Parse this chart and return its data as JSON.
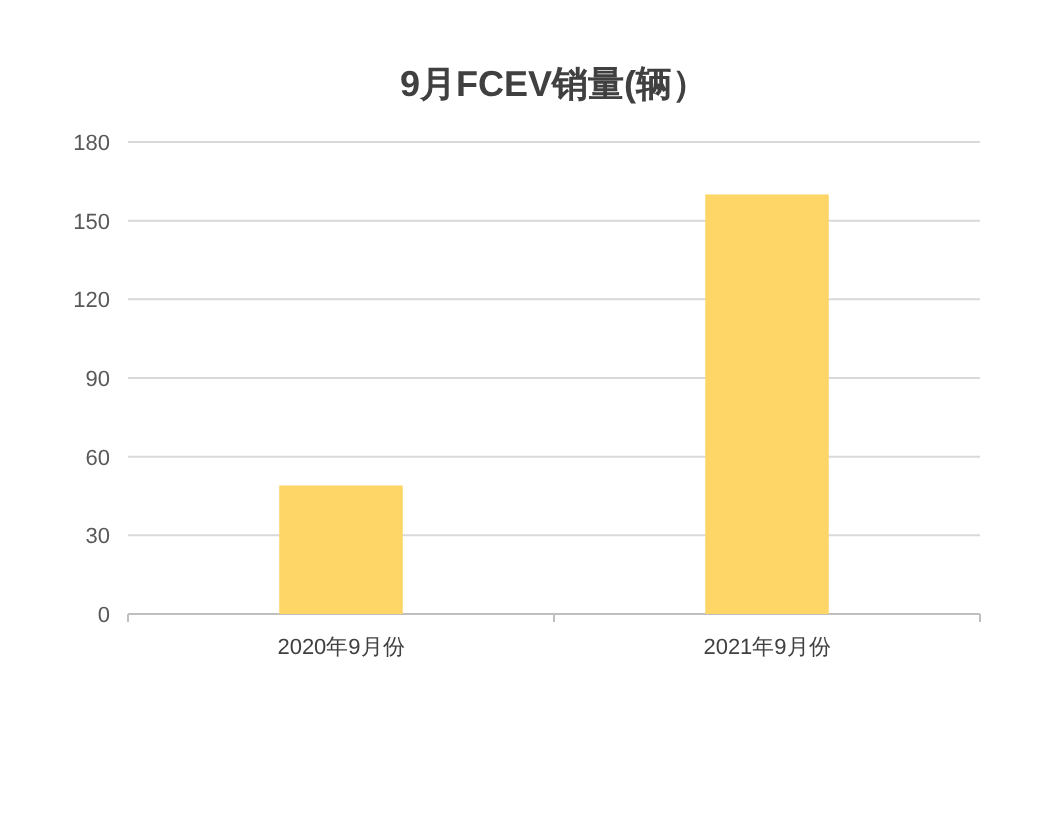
{
  "chart_data": {
    "type": "bar",
    "title": "9月FCEV销量(辆）",
    "categories": [
      "2020年9月份",
      "2021年9月份"
    ],
    "values": [
      49,
      160
    ],
    "color": "#fdd667",
    "ylim": [
      0,
      180
    ],
    "yticks": [
      0,
      30,
      60,
      90,
      120,
      150,
      180
    ],
    "grid": "y"
  }
}
